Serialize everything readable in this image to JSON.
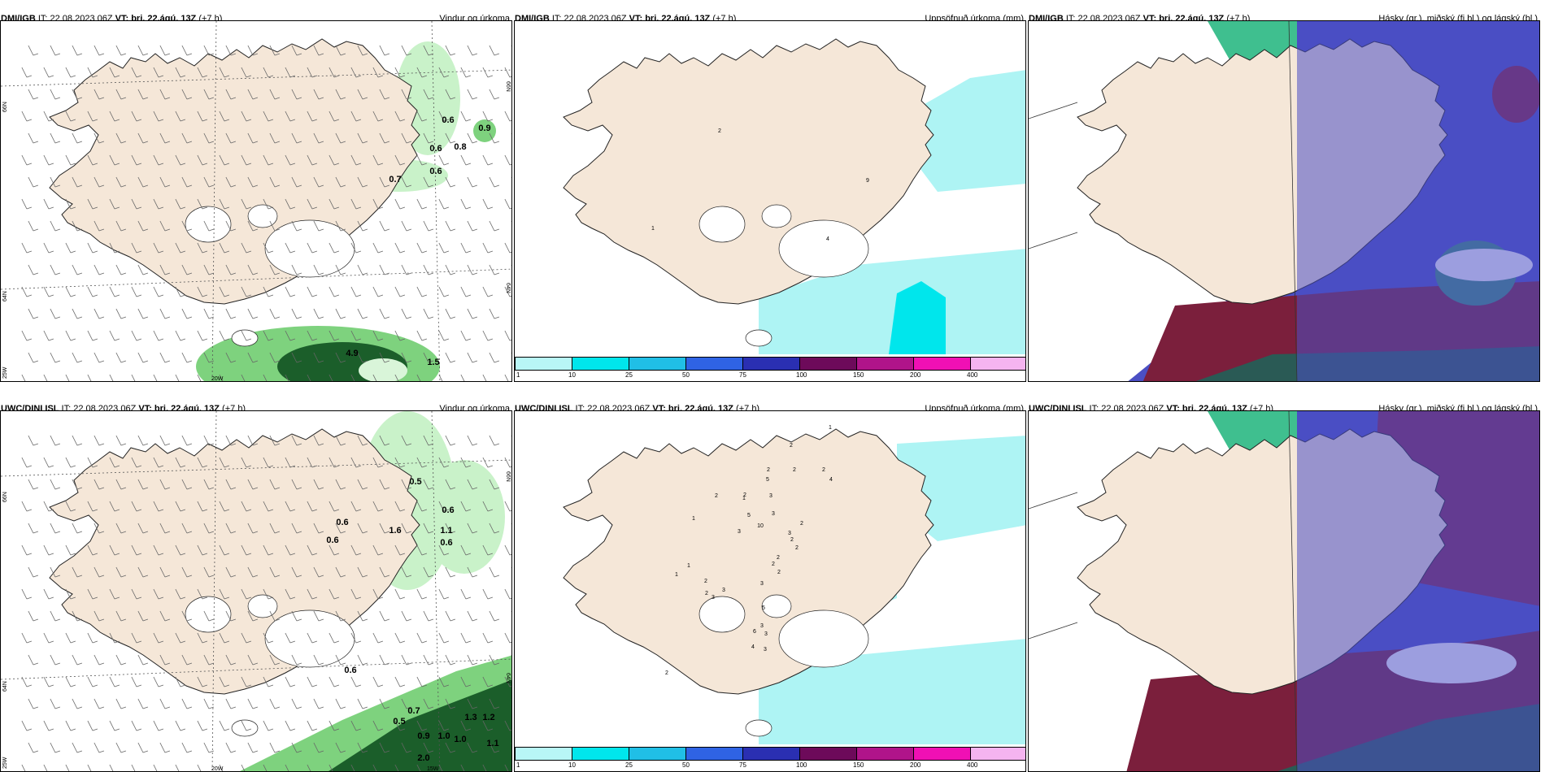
{
  "panels": [
    {
      "model": "DMI/IGB",
      "it": "IT: 22.08.2023 06Z",
      "vt": "VT: þri. 22.ágú. 13Z",
      "lead": "(+7 h)",
      "title": "Vindur og úrkoma",
      "type": "wind",
      "labels": [
        "0.9",
        "0.6",
        "0.6",
        "0.8",
        "0.6",
        "0.7",
        "4.9",
        "1.5"
      ],
      "axis": {
        "lat66": "66N",
        "lat64": "64N",
        "lat64r": "64N",
        "lat66r": "66N",
        "lon25": "25W",
        "lon20": "20W",
        "lon15": "15W"
      }
    },
    {
      "model": "DMI/IGB",
      "it": "IT: 22.08.2023 06Z",
      "vt": "VT: þri. 22.ágú. 13Z",
      "lead": "(+7 h)",
      "title": "Uppsöfnuð úrkoma (mm)",
      "type": "precip",
      "values": [
        "2",
        "9",
        "1",
        "4"
      ]
    },
    {
      "model": "DMI/IGB",
      "it": "IT: 22.08.2023 06Z",
      "vt": "VT: þri. 22.ágú. 13Z",
      "lead": "(+7 h)",
      "title": "Hásky (gr.), miðský (fj.bl.) og lágský (bl.)",
      "type": "cloud"
    },
    {
      "model": "UWC/DINI ISL",
      "it": "IT: 22.08.2023 06Z",
      "vt": "VT: þri. 22.ágú. 13Z",
      "lead": "(+7 h)",
      "title": "Vindur og úrkoma",
      "type": "wind",
      "labels": [
        "0.5",
        "0.6",
        "0.6",
        "1.6",
        "1.1",
        "0.6",
        "0.6",
        "0.6",
        "0.7",
        "0.5",
        "0.9",
        "1.0",
        "1.3",
        "1.0",
        "1.1",
        "2.0",
        "1.2"
      ],
      "axis": {
        "lat66": "66N",
        "lat64": "64N",
        "lat64r": "64N",
        "lat66r": "66N",
        "lon25": "25W",
        "lon20": "20W",
        "lon15": "15W"
      }
    },
    {
      "model": "UWC/DINI ISL",
      "it": "IT: 22.08.2023 06Z",
      "vt": "VT: þri. 22.ágú. 13Z",
      "lead": "(+7 h)",
      "title": "Uppsöfnuð úrkoma (mm)",
      "type": "precip",
      "values": [
        "1",
        "2",
        "2",
        "2",
        "2",
        "4",
        "2",
        "5",
        "2",
        "1",
        "3",
        "5",
        "1",
        "3",
        "10",
        "3",
        "2",
        "3",
        "2",
        "2",
        "2",
        "2",
        "1",
        "2",
        "3",
        "1",
        "2",
        "2",
        "3",
        "3",
        "5",
        "3",
        "6",
        "3",
        "4",
        "3",
        "2"
      ]
    },
    {
      "model": "UWC/DINI ISL",
      "it": "IT: 22.08.2023 06Z",
      "vt": "VT: þri. 22.ágú. 13Z",
      "lead": "(+7 h)",
      "title": "Hásky (gr.), miðský (fj.bl.) og lágský (bl.)",
      "type": "cloud"
    }
  ],
  "colorbar": {
    "ticks": [
      "1",
      "10",
      "25",
      "50",
      "75",
      "100",
      "150",
      "200",
      "400"
    ],
    "colors": [
      "#b8f6f6",
      "#00e6ec",
      "#20bfe6",
      "#2f63e4",
      "#2a2fb2",
      "#6d0a5a",
      "#b0148a",
      "#f010b4",
      "#f5b4f0"
    ]
  },
  "colors": {
    "land": "#f5e7d8",
    "light_precip": "#c9f2c9",
    "mid_precip": "#7ed27e",
    "heavy_precip": "#1b5e2a",
    "precip_cyan": "#aef4f4"
  }
}
